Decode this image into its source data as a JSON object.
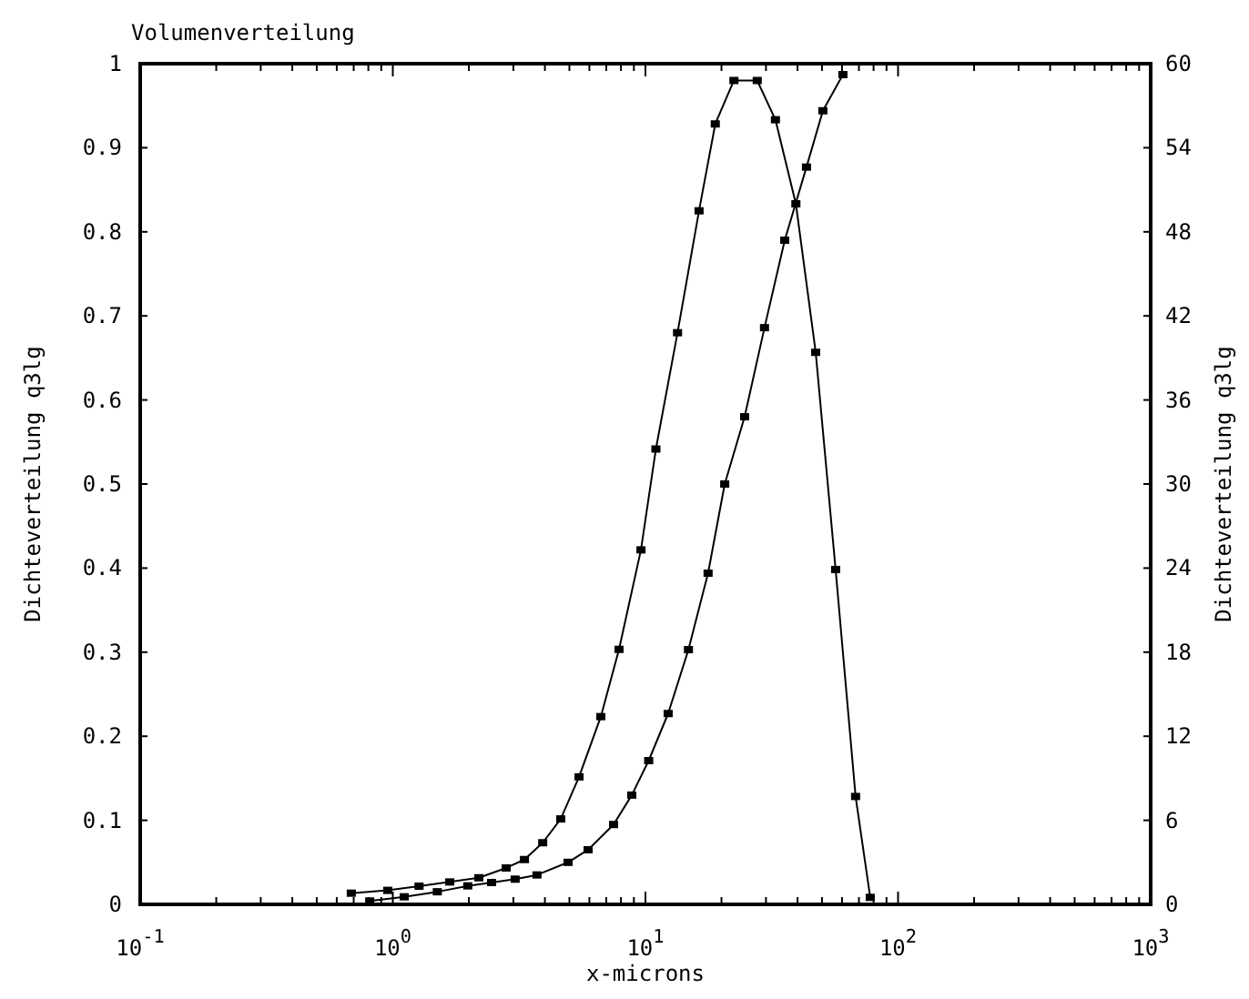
{
  "chart_data": {
    "type": "line",
    "title": "Volumenverteilung",
    "xlabel": "x-microns",
    "ylabel": "Dichteverteilung q3lg",
    "y2label": "Dichteverteilung q3lg",
    "log": "x",
    "marker": "square",
    "line_style": "solid",
    "grid": false,
    "xlim": [
      0.1,
      1000
    ],
    "xticks": [
      {
        "value": 0.1,
        "label": "10$^{-1}$"
      },
      {
        "value": 0.2,
        "label": null
      },
      {
        "value": 0.3,
        "label": null
      },
      {
        "value": 0.4,
        "label": null
      },
      {
        "value": 0.5,
        "label": null
      },
      {
        "value": 0.6,
        "label": null
      },
      {
        "value": 0.7,
        "label": null
      },
      {
        "value": 0.8,
        "label": null
      },
      {
        "value": 0.9,
        "label": null
      },
      {
        "value": 1,
        "label": "10$^{0}$"
      },
      {
        "value": 2,
        "label": null
      },
      {
        "value": 3,
        "label": null
      },
      {
        "value": 4,
        "label": null
      },
      {
        "value": 5,
        "label": null
      },
      {
        "value": 6,
        "label": null
      },
      {
        "value": 7,
        "label": null
      },
      {
        "value": 8,
        "label": null
      },
      {
        "value": 9,
        "label": null
      },
      {
        "value": 10,
        "label": "10$^{1}$"
      },
      {
        "value": 20,
        "label": null
      },
      {
        "value": 30,
        "label": null
      },
      {
        "value": 40,
        "label": null
      },
      {
        "value": 50,
        "label": null
      },
      {
        "value": 60,
        "label": null
      },
      {
        "value": 70,
        "label": null
      },
      {
        "value": 80,
        "label": null
      },
      {
        "value": 90,
        "label": null
      },
      {
        "value": 100,
        "label": "10$^{2}$"
      },
      {
        "value": 200,
        "label": null
      },
      {
        "value": 300,
        "label": null
      },
      {
        "value": 400,
        "label": null
      },
      {
        "value": 500,
        "label": null
      },
      {
        "value": 600,
        "label": null
      },
      {
        "value": 700,
        "label": null
      },
      {
        "value": 800,
        "label": null
      },
      {
        "value": 900,
        "label": null
      },
      {
        "value": 1000,
        "label": "10$^{3}$"
      }
    ],
    "ylim": [
      0,
      1
    ],
    "yticks": [
      0,
      0.1,
      0.2,
      0.3,
      0.4,
      0.5,
      0.6,
      0.7,
      0.8,
      0.9,
      1
    ],
    "y2lim": [
      0,
      60
    ],
    "y2ticks": [
      0,
      6,
      12,
      18,
      24,
      30,
      36,
      42,
      48,
      54,
      60
    ],
    "series": [
      {
        "color": "#000000",
        "x": [
          0.81,
          1.11,
          1.5,
          1.98,
          2.46,
          3.05,
          3.72,
          4.94,
          5.93,
          7.48,
          8.83,
          10.3,
          12.3,
          14.8,
          17.7,
          20.6,
          24.7,
          29.6,
          35.6,
          43.4,
          50.4,
          60.5
        ],
        "values": [
          0.004,
          0.009,
          0.015,
          0.022,
          0.026,
          0.03,
          0.035,
          0.05,
          0.065,
          0.095,
          0.13,
          0.171,
          0.227,
          0.303,
          0.394,
          0.5,
          0.58,
          0.686,
          0.79,
          0.877,
          0.944,
          0.987
        ]
      },
      {
        "color": "#000000",
        "axis": "y2",
        "x": [
          0.685,
          0.955,
          1.27,
          1.68,
          2.19,
          2.81,
          3.32,
          3.92,
          4.62,
          5.46,
          6.66,
          7.86,
          9.6,
          11.0,
          13.4,
          16.3,
          18.9,
          22.4,
          27.7,
          32.7,
          39.4,
          47.2,
          56.6,
          67.9,
          77.6
        ],
        "values": [
          0.8,
          1.0,
          1.3,
          1.6,
          1.9,
          2.6,
          3.2,
          4.4,
          6.1,
          9.1,
          13.4,
          18.2,
          25.3,
          32.5,
          40.8,
          49.5,
          55.7,
          58.8,
          58.8,
          56.0,
          50.0,
          39.4,
          23.9,
          7.7,
          0.5
        ]
      }
    ]
  }
}
